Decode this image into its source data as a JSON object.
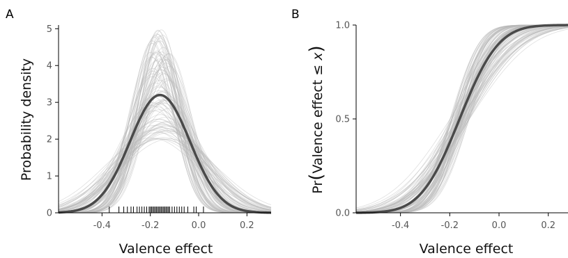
{
  "chart_data": [
    {
      "panel_label": "A",
      "type": "line",
      "description_kind": "density",
      "xlabel": "Valence effect",
      "ylabel": "Probability density",
      "xlim": [
        -0.58,
        0.3
      ],
      "ylim": [
        0,
        5.1
      ],
      "x_ticks": [
        -0.4,
        -0.2,
        0.0,
        0.2
      ],
      "x_tick_labels": [
        "-0.4",
        "-0.2",
        "0.0",
        "0.2"
      ],
      "y_ticks": [
        0,
        1,
        2,
        3,
        4,
        5
      ],
      "y_tick_labels": [
        "0",
        "1",
        "2",
        "3",
        "4",
        "5"
      ],
      "mean_curve": {
        "distribution": "normal",
        "mean": -0.16,
        "sd": 0.124,
        "peak": 3.2
      },
      "posterior_draws": {
        "count": 100,
        "mean_range": [
          -0.2,
          -0.12
        ],
        "sd_range": [
          0.077,
          0.2
        ],
        "peak_range": [
          2.0,
          5.1
        ],
        "color": "#b8b8b8"
      },
      "rug_x": [
        -0.37,
        -0.33,
        -0.31,
        -0.295,
        -0.28,
        -0.27,
        -0.255,
        -0.245,
        -0.235,
        -0.225,
        -0.215,
        -0.205,
        -0.2,
        -0.195,
        -0.19,
        -0.185,
        -0.18,
        -0.175,
        -0.17,
        -0.165,
        -0.16,
        -0.155,
        -0.15,
        -0.145,
        -0.14,
        -0.135,
        -0.13,
        -0.125,
        -0.12,
        -0.11,
        -0.1,
        -0.09,
        -0.08,
        -0.07,
        -0.06,
        -0.045,
        -0.02,
        -0.01,
        0.02
      ],
      "grid": false
    },
    {
      "panel_label": "B",
      "type": "line",
      "description_kind": "cumulative",
      "xlabel": "Valence effect",
      "ylabel": "Pr(Valence effect ≤ x)",
      "ylabel_parts": [
        "Pr",
        "Valence effect ≤ ",
        "x"
      ],
      "xlim": [
        -0.58,
        0.28
      ],
      "ylim": [
        0,
        1
      ],
      "x_ticks": [
        -0.4,
        -0.2,
        0.0,
        0.2
      ],
      "x_tick_labels": [
        "-0.4",
        "-0.2",
        "0.0",
        "0.2"
      ],
      "y_ticks": [
        0.0,
        0.5,
        1.0
      ],
      "y_tick_labels": [
        "0.0",
        "0.5",
        "1.0"
      ],
      "mean_curve": {
        "distribution": "normal_cdf",
        "mean": -0.16,
        "sd": 0.124
      },
      "posterior_draws": {
        "count": 100,
        "mean_range": [
          -0.2,
          -0.12
        ],
        "sd_range": [
          0.077,
          0.2
        ],
        "color": "#b8b8b8"
      },
      "grid": false
    }
  ],
  "colors": {
    "mean_curve": "#4a4a4a",
    "draw_curve": "#b8b8b8",
    "axis": "#000000",
    "tick_label": "#555555"
  }
}
